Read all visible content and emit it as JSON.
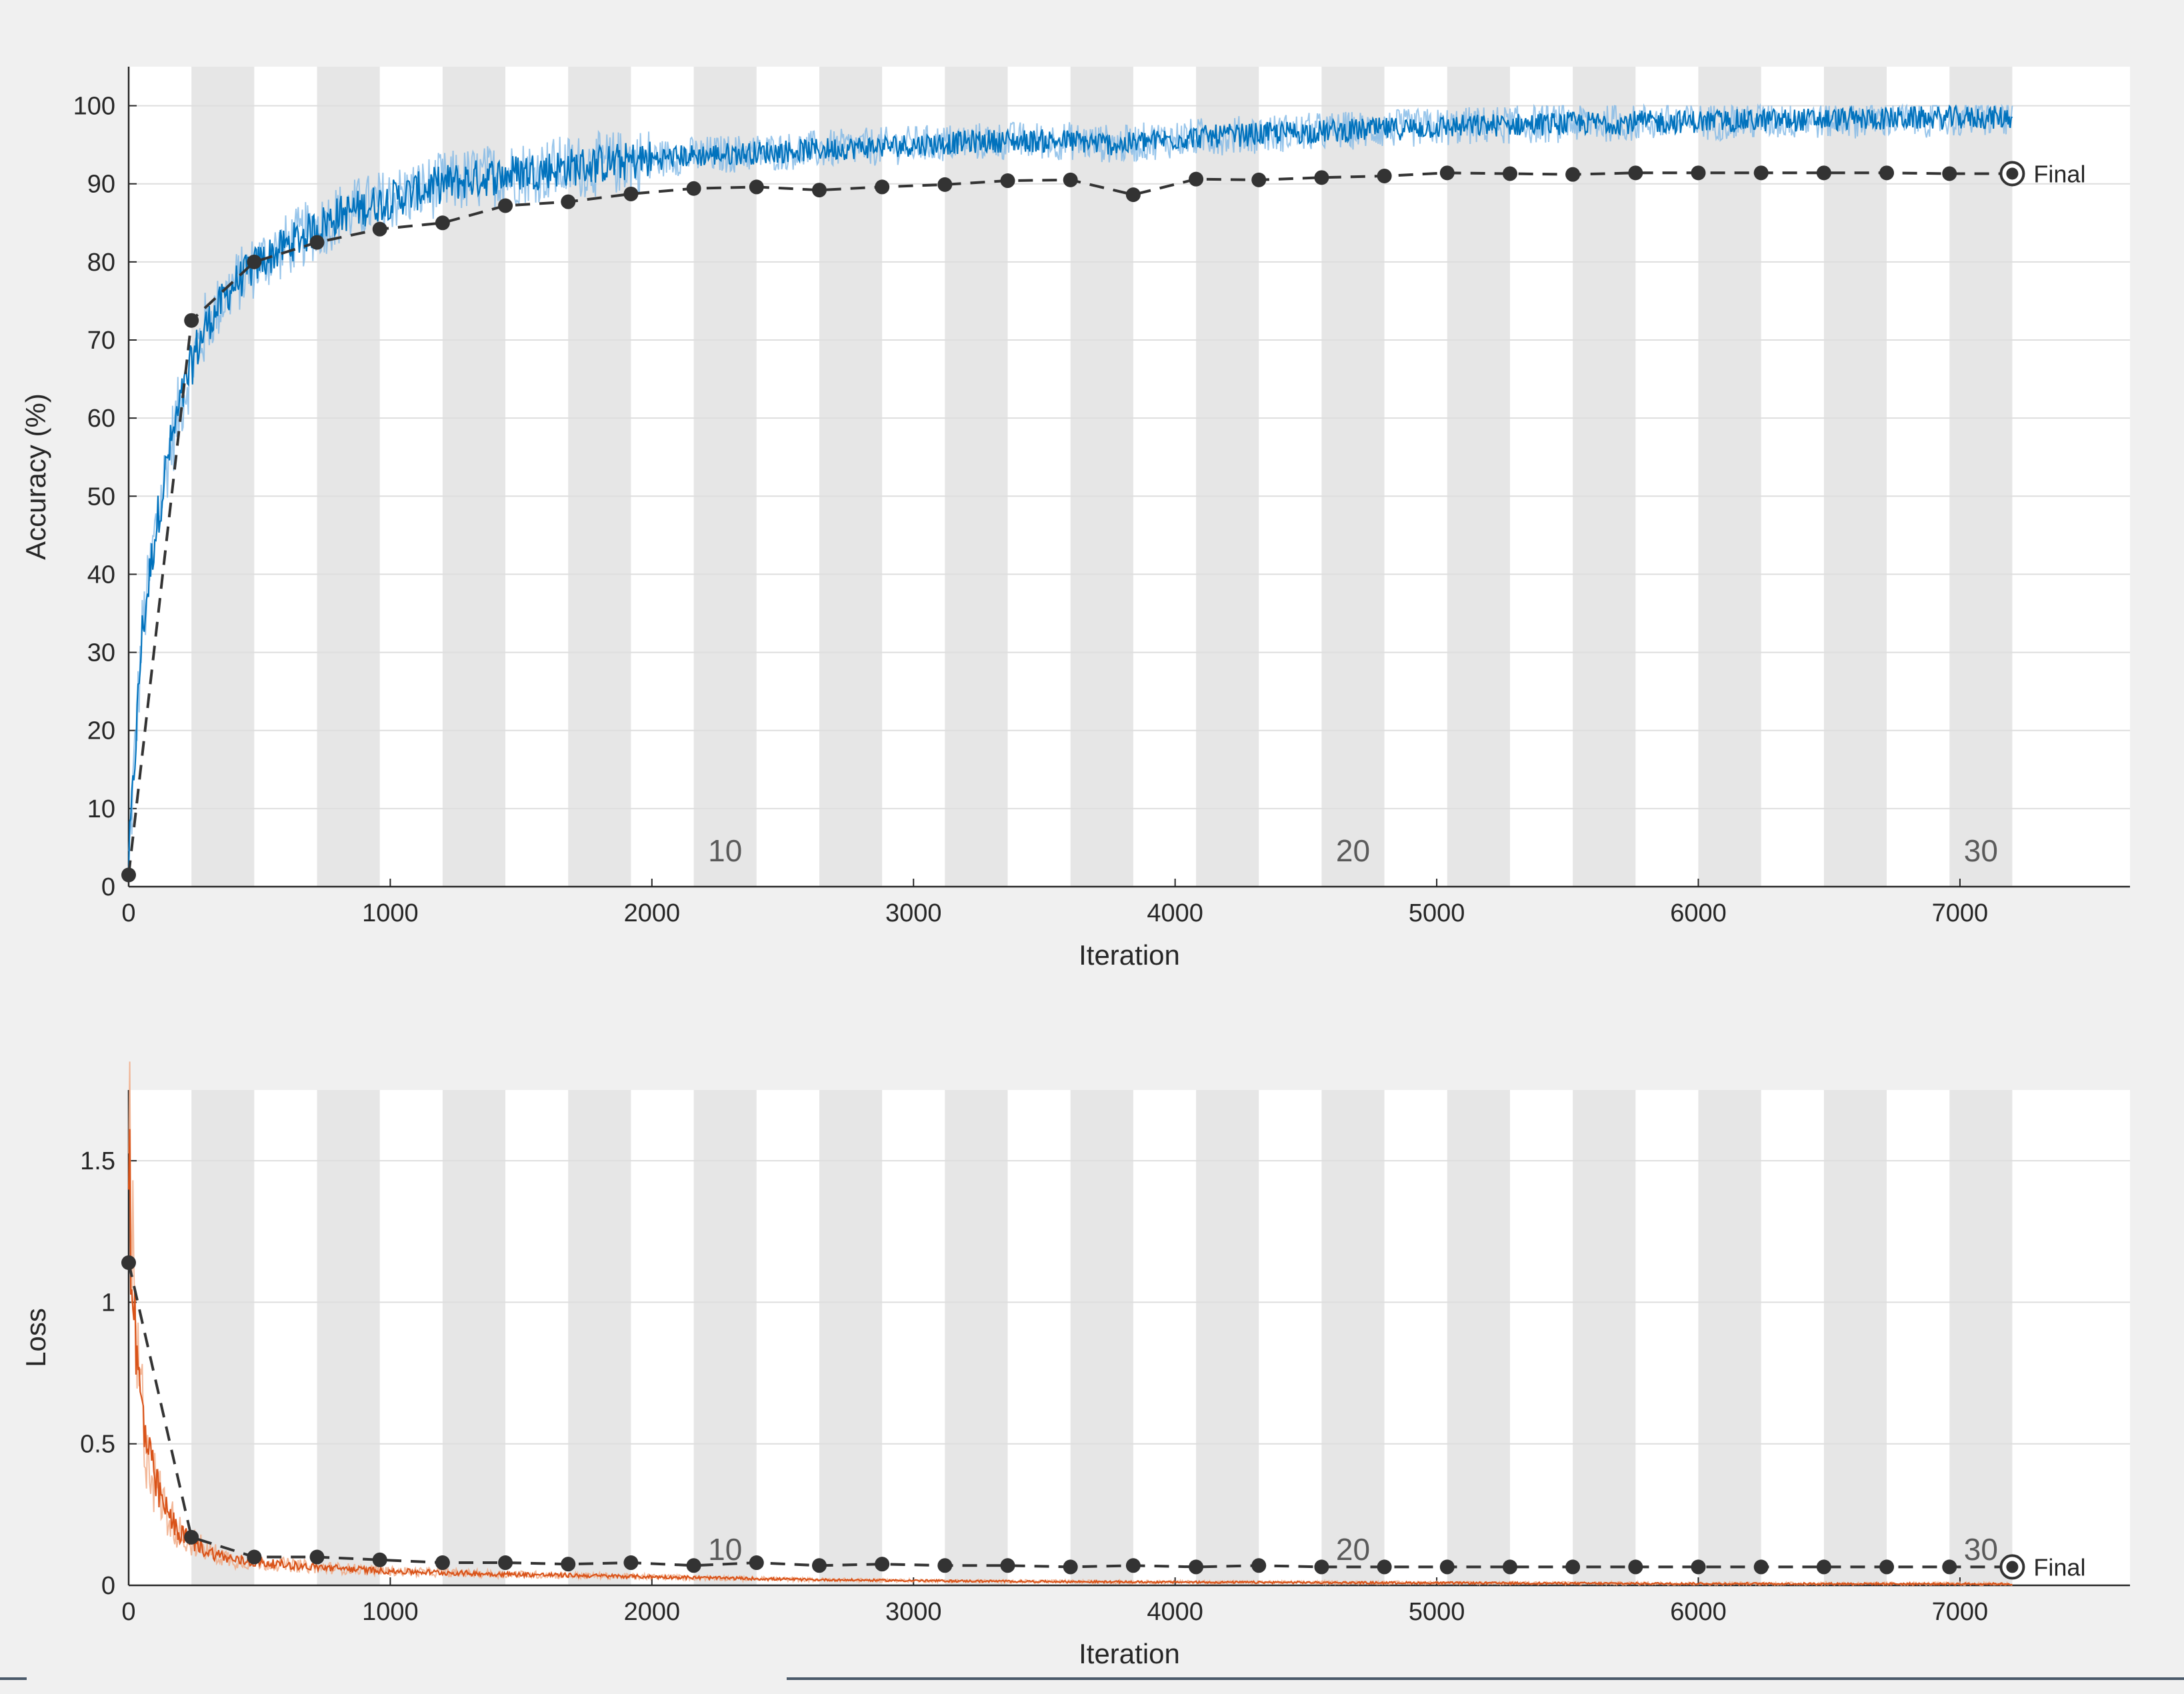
{
  "window": {
    "title": ""
  },
  "colors": {
    "background": "#f0f0f0",
    "plot_background": "#ffffff",
    "epoch_band": "#e6e6e6",
    "grid": "#dedede",
    "accuracy_raw": "#0072bd",
    "accuracy_smoothed_light": "#7fb8e6",
    "loss_raw": "#d95319",
    "loss_smoothed_light": "#f0a67f",
    "validation": "#333333"
  },
  "shared": {
    "iteration_max": 7200,
    "iterations_per_epoch": 240,
    "epoch_label_values": [
      "10",
      "20",
      "30"
    ],
    "final_label": "Final",
    "validation_iterations": [
      0,
      240,
      480,
      720,
      960,
      1200,
      1440,
      1680,
      1920,
      2160,
      2400,
      2640,
      2880,
      3120,
      3360,
      3600,
      3840,
      4080,
      4320,
      4560,
      4800,
      5040,
      5280,
      5520,
      5760,
      6000,
      6240,
      6480,
      6720,
      6960,
      7200
    ]
  },
  "chart_data": [
    {
      "type": "line",
      "title": "",
      "xlabel": "Iteration",
      "ylabel": "Accuracy (%)",
      "xlim": [
        0,
        7650
      ],
      "ylim": [
        0,
        105
      ],
      "xticks": [
        "0",
        "1000",
        "2000",
        "3000",
        "4000",
        "5000",
        "6000",
        "7000"
      ],
      "yticks": [
        "0",
        "10",
        "20",
        "30",
        "40",
        "50",
        "60",
        "70",
        "80",
        "90",
        "100"
      ],
      "grid": true,
      "series": [
        {
          "style": "raw",
          "x": [
            0,
            50,
            100,
            150,
            200,
            250,
            300,
            400,
            500,
            600,
            700,
            800,
            1000,
            1200,
            1500,
            1800,
            2100,
            2400,
            2700,
            3000,
            3300,
            3600,
            3800,
            3900,
            4100,
            4400,
            4800,
            5200,
            5600,
            6000,
            6400,
            6800,
            7200
          ],
          "values": [
            3,
            32,
            45,
            55,
            62,
            68,
            72,
            77,
            80,
            82,
            84,
            86,
            88,
            90,
            91.5,
            92.5,
            93.5,
            94,
            94.5,
            95,
            95.5,
            95.5,
            95,
            95.5,
            96,
            96.5,
            97,
            97.5,
            97.8,
            98,
            98.2,
            98.4,
            98.5
          ]
        },
        {
          "style": "validation",
          "values": [
            1.5,
            72.5,
            80,
            82.5,
            84.2,
            85,
            87.2,
            87.7,
            88.7,
            89.4,
            89.6,
            89.2,
            89.6,
            89.9,
            90.4,
            90.5,
            88.6,
            90.6,
            90.5,
            90.8,
            91,
            91.4,
            91.3,
            91.2,
            91.4,
            91.4,
            91.4,
            91.4,
            91.4,
            91.3,
            91.3
          ]
        }
      ]
    },
    {
      "type": "line",
      "title": "",
      "xlabel": "Iteration",
      "ylabel": "Loss",
      "xlim": [
        0,
        7650
      ],
      "ylim": [
        0,
        1.75
      ],
      "xticks": [
        "0",
        "1000",
        "2000",
        "3000",
        "4000",
        "5000",
        "6000",
        "7000"
      ],
      "yticks": [
        "0",
        "0.5",
        "1",
        "1.5"
      ],
      "grid": true,
      "series": [
        {
          "style": "raw",
          "x": [
            0,
            10,
            30,
            60,
            100,
            150,
            200,
            250,
            300,
            400,
            500,
            700,
            1000,
            1400,
            2000,
            2600,
            3200,
            3800,
            4500,
            5200,
            6000,
            7200
          ],
          "values": [
            1.6,
            1.2,
            0.78,
            0.55,
            0.36,
            0.25,
            0.18,
            0.15,
            0.12,
            0.09,
            0.08,
            0.065,
            0.05,
            0.04,
            0.03,
            0.02,
            0.015,
            0.012,
            0.01,
            0.008,
            0.006,
            0.005
          ]
        },
        {
          "style": "validation",
          "values": [
            1.14,
            0.17,
            0.1,
            0.1,
            0.09,
            0.08,
            0.08,
            0.075,
            0.08,
            0.07,
            0.08,
            0.07,
            0.075,
            0.07,
            0.07,
            0.065,
            0.07,
            0.065,
            0.07,
            0.065,
            0.065,
            0.065,
            0.065,
            0.065,
            0.065,
            0.065,
            0.065,
            0.065,
            0.065,
            0.065,
            0.065
          ]
        }
      ]
    }
  ]
}
